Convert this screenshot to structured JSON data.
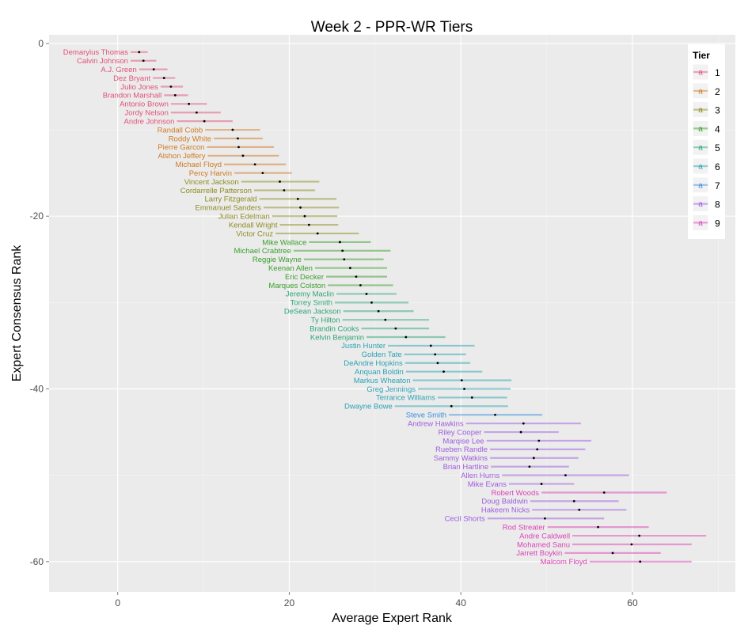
{
  "chart_data": {
    "type": "scatter",
    "title": "Week 2 - PPR-WR Tiers",
    "xlabel": "Average Expert Rank",
    "ylabel": "Expert Consensus Rank",
    "xlim": [
      -8,
      72
    ],
    "ylim": [
      -63.5,
      1
    ],
    "x_ticks": [
      0,
      20,
      40,
      60
    ],
    "y_ticks": [
      0,
      -20,
      -40,
      -60
    ],
    "grid": true,
    "legend": {
      "title": "Tier",
      "placement": "top-right",
      "key_glyph": "a",
      "entries": [
        "1",
        "2",
        "3",
        "4",
        "5",
        "6",
        "7",
        "8",
        "9"
      ]
    },
    "tier_colors": {
      "1": "#e2517a",
      "2": "#d07a22",
      "3": "#8e8d22",
      "4": "#3aa02c",
      "5": "#2ea779",
      "6": "#2aa3b4",
      "7": "#3a8ee0",
      "8": "#a05ce0",
      "9": "#dd43b8"
    },
    "players": [
      {
        "rank": 1,
        "name": "Demaryius Thomas",
        "tier": 1,
        "avg": 2.5,
        "lo": 1.5,
        "hi": 3.5
      },
      {
        "rank": 2,
        "name": "Calvin Johnson",
        "tier": 1,
        "avg": 3.0,
        "lo": 1.5,
        "hi": 4.5
      },
      {
        "rank": 3,
        "name": "A.J. Green",
        "tier": 1,
        "avg": 4.2,
        "lo": 2.5,
        "hi": 5.8
      },
      {
        "rank": 4,
        "name": "Dez Bryant",
        "tier": 1,
        "avg": 5.4,
        "lo": 4.1,
        "hi": 6.7
      },
      {
        "rank": 5,
        "name": "Julio Jones",
        "tier": 1,
        "avg": 6.2,
        "lo": 5.0,
        "hi": 7.6
      },
      {
        "rank": 6,
        "name": "Brandon Marshall",
        "tier": 1,
        "avg": 6.7,
        "lo": 5.4,
        "hi": 8.2
      },
      {
        "rank": 7,
        "name": "Antonio Brown",
        "tier": 1,
        "avg": 8.3,
        "lo": 6.2,
        "hi": 10.4
      },
      {
        "rank": 8,
        "name": "Jordy Nelson",
        "tier": 1,
        "avg": 9.2,
        "lo": 6.2,
        "hi": 12.0
      },
      {
        "rank": 9,
        "name": "Andre Johnson",
        "tier": 1,
        "avg": 10.1,
        "lo": 6.9,
        "hi": 13.4
      },
      {
        "rank": 10,
        "name": "Randall Cobb",
        "tier": 2,
        "avg": 13.4,
        "lo": 10.2,
        "hi": 16.6
      },
      {
        "rank": 11,
        "name": "Roddy White",
        "tier": 2,
        "avg": 14.0,
        "lo": 11.2,
        "hi": 16.9
      },
      {
        "rank": 12,
        "name": "Pierre Garcon",
        "tier": 2,
        "avg": 14.1,
        "lo": 10.4,
        "hi": 18.2
      },
      {
        "rank": 13,
        "name": "Alshon Jeffery",
        "tier": 2,
        "avg": 14.6,
        "lo": 10.5,
        "hi": 18.8
      },
      {
        "rank": 14,
        "name": "Michael Floyd",
        "tier": 2,
        "avg": 16.0,
        "lo": 12.4,
        "hi": 19.6
      },
      {
        "rank": 15,
        "name": "Percy Harvin",
        "tier": 2,
        "avg": 16.9,
        "lo": 13.6,
        "hi": 20.3
      },
      {
        "rank": 16,
        "name": "Vincent Jackson",
        "tier": 3,
        "avg": 18.9,
        "lo": 14.4,
        "hi": 23.5
      },
      {
        "rank": 17,
        "name": "Cordarrelle Patterson",
        "tier": 3,
        "avg": 19.4,
        "lo": 15.9,
        "hi": 23.0
      },
      {
        "rank": 18,
        "name": "Larry Fitzgerald",
        "tier": 3,
        "avg": 21.0,
        "lo": 16.5,
        "hi": 25.5
      },
      {
        "rank": 19,
        "name": "Emmanuel Sanders",
        "tier": 3,
        "avg": 21.3,
        "lo": 17.0,
        "hi": 25.8
      },
      {
        "rank": 20,
        "name": "Julian Edelman",
        "tier": 3,
        "avg": 21.8,
        "lo": 18.0,
        "hi": 25.6
      },
      {
        "rank": 21,
        "name": "Kendall Wright",
        "tier": 3,
        "avg": 22.3,
        "lo": 18.9,
        "hi": 25.7
      },
      {
        "rank": 22,
        "name": "Victor Cruz",
        "tier": 3,
        "avg": 23.3,
        "lo": 18.4,
        "hi": 28.1
      },
      {
        "rank": 23,
        "name": "Mike Wallace",
        "tier": 4,
        "avg": 25.9,
        "lo": 22.3,
        "hi": 29.5
      },
      {
        "rank": 24,
        "name": "Michael Crabtree",
        "tier": 4,
        "avg": 26.2,
        "lo": 20.5,
        "hi": 31.8
      },
      {
        "rank": 25,
        "name": "Reggie Wayne",
        "tier": 4,
        "avg": 26.4,
        "lo": 21.7,
        "hi": 31.0
      },
      {
        "rank": 26,
        "name": "Keenan Allen",
        "tier": 4,
        "avg": 27.1,
        "lo": 23.0,
        "hi": 31.4
      },
      {
        "rank": 27,
        "name": "Eric Decker",
        "tier": 4,
        "avg": 27.8,
        "lo": 24.3,
        "hi": 31.4
      },
      {
        "rank": 28,
        "name": "Marques Colston",
        "tier": 4,
        "avg": 28.3,
        "lo": 24.5,
        "hi": 32.1
      },
      {
        "rank": 29,
        "name": "Jeremy Maclin",
        "tier": 5,
        "avg": 29.0,
        "lo": 25.5,
        "hi": 32.5
      },
      {
        "rank": 30,
        "name": "Torrey Smith",
        "tier": 5,
        "avg": 29.6,
        "lo": 25.3,
        "hi": 33.9
      },
      {
        "rank": 31,
        "name": "DeSean Jackson",
        "tier": 5,
        "avg": 30.4,
        "lo": 26.3,
        "hi": 34.5
      },
      {
        "rank": 32,
        "name": "Ty Hilton",
        "tier": 5,
        "avg": 31.2,
        "lo": 26.2,
        "hi": 36.3
      },
      {
        "rank": 33,
        "name": "Brandin Cooks",
        "tier": 5,
        "avg": 32.4,
        "lo": 28.4,
        "hi": 36.3
      },
      {
        "rank": 34,
        "name": "Kelvin Benjamin",
        "tier": 5,
        "avg": 33.6,
        "lo": 29.0,
        "hi": 38.2
      },
      {
        "rank": 35,
        "name": "Justin Hunter",
        "tier": 6,
        "avg": 36.5,
        "lo": 31.5,
        "hi": 41.6
      },
      {
        "rank": 36,
        "name": "Golden Tate",
        "tier": 6,
        "avg": 37.0,
        "lo": 33.4,
        "hi": 40.6
      },
      {
        "rank": 37,
        "name": "DeAndre Hopkins",
        "tier": 6,
        "avg": 37.3,
        "lo": 33.5,
        "hi": 41.1
      },
      {
        "rank": 38,
        "name": "Anquan Boldin",
        "tier": 6,
        "avg": 38.0,
        "lo": 33.6,
        "hi": 42.5
      },
      {
        "rank": 39,
        "name": "Markus Wheaton",
        "tier": 6,
        "avg": 40.1,
        "lo": 34.4,
        "hi": 45.9
      },
      {
        "rank": 40,
        "name": "Greg Jennings",
        "tier": 6,
        "avg": 40.4,
        "lo": 35.0,
        "hi": 45.8
      },
      {
        "rank": 41,
        "name": "Terrance Williams",
        "tier": 6,
        "avg": 41.3,
        "lo": 37.3,
        "hi": 45.4
      },
      {
        "rank": 42,
        "name": "Dwayne Bowe",
        "tier": 6,
        "avg": 38.9,
        "lo": 32.3,
        "hi": 45.5
      },
      {
        "rank": 43,
        "name": "Steve Smith",
        "tier": 7,
        "avg": 44.0,
        "lo": 38.6,
        "hi": 49.5
      },
      {
        "rank": 44,
        "name": "Andrew Hawkins",
        "tier": 8,
        "avg": 47.3,
        "lo": 40.6,
        "hi": 54.0
      },
      {
        "rank": 45,
        "name": "Riley Cooper",
        "tier": 8,
        "avg": 47.0,
        "lo": 42.7,
        "hi": 51.4
      },
      {
        "rank": 46,
        "name": "Marqise Lee",
        "tier": 8,
        "avg": 49.1,
        "lo": 43.0,
        "hi": 55.2
      },
      {
        "rank": 47,
        "name": "Rueben Randle",
        "tier": 8,
        "avg": 48.9,
        "lo": 43.4,
        "hi": 54.5
      },
      {
        "rank": 48,
        "name": "Sammy Watkins",
        "tier": 8,
        "avg": 48.5,
        "lo": 43.4,
        "hi": 53.7
      },
      {
        "rank": 49,
        "name": "Brian Hartline",
        "tier": 8,
        "avg": 48.0,
        "lo": 43.5,
        "hi": 52.6
      },
      {
        "rank": 50,
        "name": "Allen Hurns",
        "tier": 8,
        "avg": 52.2,
        "lo": 44.8,
        "hi": 59.6
      },
      {
        "rank": 51,
        "name": "Mike Evans",
        "tier": 8,
        "avg": 49.4,
        "lo": 45.6,
        "hi": 53.2
      },
      {
        "rank": 52,
        "name": "Robert Woods",
        "tier": 9,
        "avg": 56.7,
        "lo": 49.4,
        "hi": 64.0
      },
      {
        "rank": 53,
        "name": "Doug Baldwin",
        "tier": 8,
        "avg": 53.2,
        "lo": 48.1,
        "hi": 58.4
      },
      {
        "rank": 54,
        "name": "Hakeem Nicks",
        "tier": 8,
        "avg": 53.8,
        "lo": 48.3,
        "hi": 59.3
      },
      {
        "rank": 55,
        "name": "Cecil Shorts",
        "tier": 8,
        "avg": 49.8,
        "lo": 43.1,
        "hi": 56.7
      },
      {
        "rank": 56,
        "name": "Rod Streater",
        "tier": 9,
        "avg": 56.0,
        "lo": 50.1,
        "hi": 61.9
      },
      {
        "rank": 57,
        "name": "Andre Caldwell",
        "tier": 9,
        "avg": 60.8,
        "lo": 53.0,
        "hi": 68.6
      },
      {
        "rank": 58,
        "name": "Mohamed Sanu",
        "tier": 9,
        "avg": 59.9,
        "lo": 53.0,
        "hi": 66.9
      },
      {
        "rank": 59,
        "name": "Jarrett Boykin",
        "tier": 9,
        "avg": 57.7,
        "lo": 52.1,
        "hi": 63.3
      },
      {
        "rank": 60,
        "name": "Malcom Floyd",
        "tier": 9,
        "avg": 60.9,
        "lo": 55.0,
        "hi": 66.9
      }
    ]
  }
}
